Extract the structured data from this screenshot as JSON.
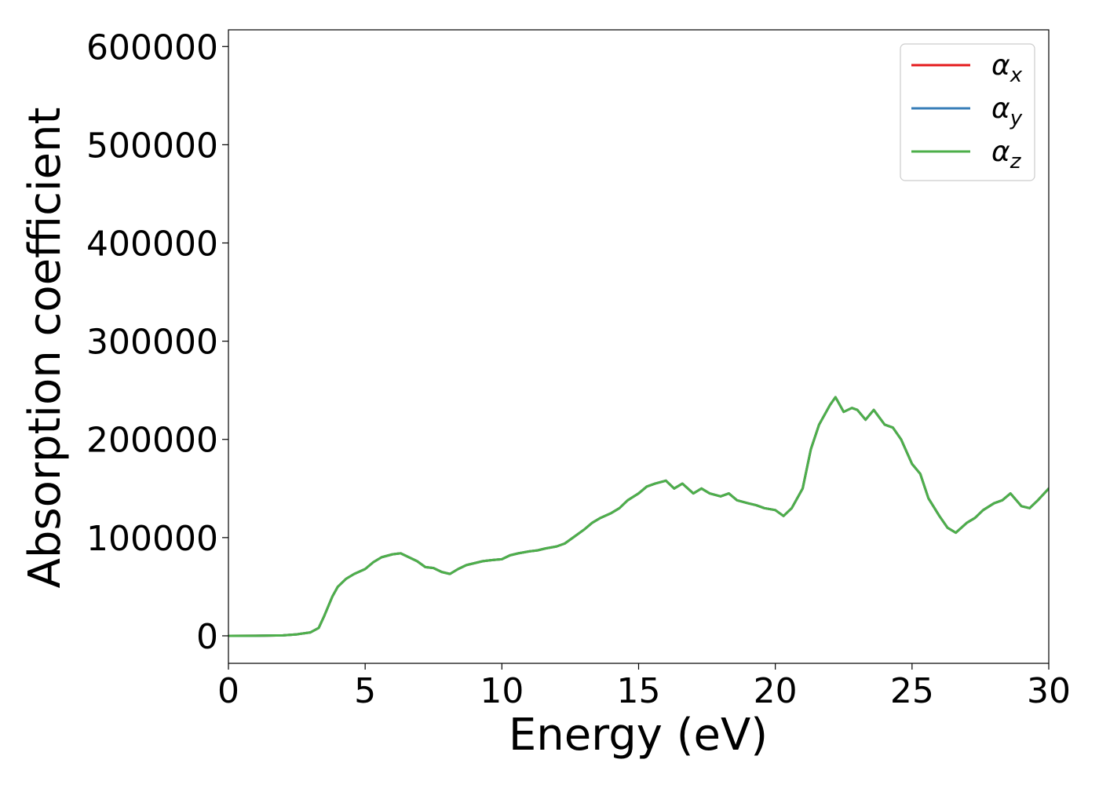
{
  "chart_data": {
    "type": "line",
    "xlabel": "Energy (eV)",
    "ylabel": "Absorption coefficient",
    "xlim": [
      0,
      30
    ],
    "ylim": [
      -28000,
      617000
    ],
    "xticks": [
      0,
      5,
      10,
      15,
      20,
      25,
      30
    ],
    "yticks": [
      0,
      100000,
      200000,
      300000,
      400000,
      500000,
      600000
    ],
    "grid": false,
    "legend_position": "upper-right",
    "x": [
      0,
      1,
      2,
      2.5,
      3.0,
      3.3,
      3.5,
      3.8,
      4.0,
      4.3,
      4.6,
      5.0,
      5.3,
      5.6,
      6.0,
      6.3,
      6.6,
      6.9,
      7.2,
      7.5,
      7.8,
      8.1,
      8.4,
      8.7,
      9.0,
      9.3,
      9.6,
      10.0,
      10.3,
      10.6,
      11.0,
      11.3,
      11.6,
      12.0,
      12.3,
      12.6,
      13.0,
      13.3,
      13.6,
      14.0,
      14.3,
      14.6,
      15.0,
      15.3,
      15.6,
      16.0,
      16.3,
      16.6,
      17.0,
      17.3,
      17.6,
      18.0,
      18.3,
      18.6,
      19.0,
      19.3,
      19.6,
      20.0,
      20.3,
      20.6,
      21.0,
      21.3,
      21.6,
      22.0,
      22.2,
      22.5,
      22.8,
      23.0,
      23.3,
      23.6,
      24.0,
      24.3,
      24.6,
      25.0,
      25.3,
      25.6,
      26.0,
      26.3,
      26.6,
      27.0,
      27.3,
      27.6,
      28.0,
      28.3,
      28.6,
      29.0,
      29.3,
      29.6,
      30.0
    ],
    "series": [
      {
        "name": "αx",
        "color": "#e41a1c",
        "values": [
          0,
          100,
          500,
          1500,
          3500,
          8000,
          20000,
          40000,
          50000,
          58000,
          63000,
          68000,
          75000,
          80000,
          83000,
          84000,
          80000,
          76000,
          70000,
          69000,
          65000,
          63000,
          68000,
          72000,
          74000,
          76000,
          77000,
          78000,
          82000,
          84000,
          86000,
          87000,
          89000,
          91000,
          94000,
          100000,
          108000,
          115000,
          120000,
          125000,
          130000,
          138000,
          145000,
          152000,
          155000,
          158000,
          150000,
          155000,
          145000,
          150000,
          145000,
          142000,
          145000,
          138000,
          135000,
          133000,
          130000,
          128000,
          122000,
          130000,
          150000,
          190000,
          215000,
          235000,
          243000,
          228000,
          232000,
          230000,
          220000,
          230000,
          215000,
          212000,
          200000,
          175000,
          165000,
          140000,
          122000,
          110000,
          105000,
          115000,
          120000,
          128000,
          135000,
          138000,
          145000,
          132000,
          130000,
          138000,
          150000
        ]
      },
      {
        "name": "αy",
        "color": "#377eb8",
        "values": [
          0,
          100,
          500,
          1500,
          3500,
          8000,
          20000,
          40000,
          50000,
          58000,
          63000,
          68000,
          75000,
          80000,
          83000,
          84000,
          80000,
          76000,
          70000,
          69000,
          65000,
          63000,
          68000,
          72000,
          74000,
          76000,
          77000,
          78000,
          82000,
          84000,
          86000,
          87000,
          89000,
          91000,
          94000,
          100000,
          108000,
          115000,
          120000,
          125000,
          130000,
          138000,
          145000,
          152000,
          155000,
          158000,
          150000,
          155000,
          145000,
          150000,
          145000,
          142000,
          145000,
          138000,
          135000,
          133000,
          130000,
          128000,
          122000,
          130000,
          150000,
          190000,
          215000,
          235000,
          243000,
          228000,
          232000,
          230000,
          220000,
          230000,
          215000,
          212000,
          200000,
          175000,
          165000,
          140000,
          122000,
          110000,
          105000,
          115000,
          120000,
          128000,
          135000,
          138000,
          145000,
          132000,
          130000,
          138000,
          150000
        ]
      },
      {
        "name": "αz",
        "color": "#4daf4a",
        "values": [
          0,
          100,
          500,
          1500,
          3500,
          8000,
          20000,
          40000,
          50000,
          58000,
          63000,
          68000,
          75000,
          80000,
          83000,
          84000,
          80000,
          76000,
          70000,
          69000,
          65000,
          63000,
          68000,
          72000,
          74000,
          76000,
          77000,
          78000,
          82000,
          84000,
          86000,
          87000,
          89000,
          91000,
          94000,
          100000,
          108000,
          115000,
          120000,
          125000,
          130000,
          138000,
          145000,
          152000,
          155000,
          158000,
          150000,
          155000,
          145000,
          150000,
          145000,
          142000,
          145000,
          138000,
          135000,
          133000,
          130000,
          128000,
          122000,
          130000,
          150000,
          190000,
          215000,
          235000,
          243000,
          228000,
          232000,
          230000,
          220000,
          230000,
          215000,
          212000,
          200000,
          175000,
          165000,
          140000,
          122000,
          110000,
          105000,
          115000,
          120000,
          128000,
          135000,
          138000,
          145000,
          132000,
          130000,
          138000,
          150000
        ]
      }
    ],
    "legend": [
      {
        "symbol": "α",
        "sub": "x",
        "color": "#e41a1c"
      },
      {
        "symbol": "α",
        "sub": "y",
        "color": "#377eb8"
      },
      {
        "symbol": "α",
        "sub": "z",
        "color": "#4daf4a"
      }
    ]
  }
}
